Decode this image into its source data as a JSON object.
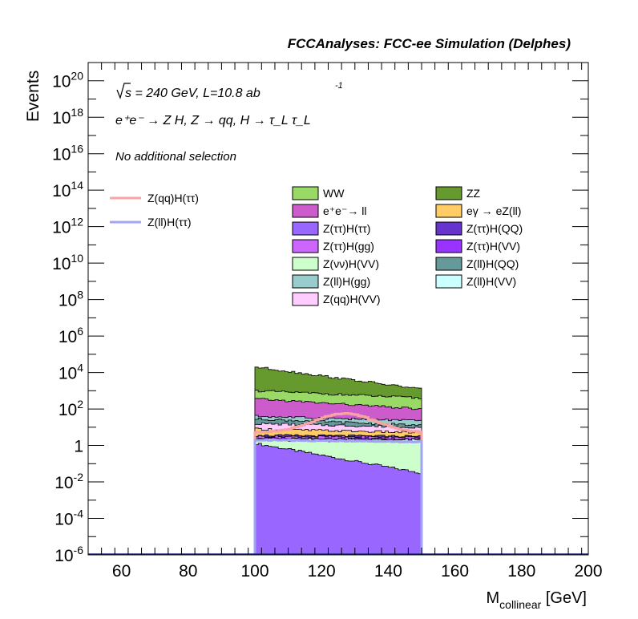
{
  "chart_data": {
    "type": "area",
    "title": "FCCAnalyses: FCC-ee Simulation (Delphes)",
    "xlabel_main": "M",
    "xlabel_sub": "collinear",
    "xlabel_unit": "[GeV]",
    "ylabel": "Events",
    "xlim": [
      50,
      200
    ],
    "ylim_log10": [
      -6,
      21
    ],
    "ylog": true,
    "grid": false,
    "xticks": [
      "60",
      "80",
      "100",
      "120",
      "140",
      "160",
      "180",
      "200"
    ],
    "xtick_values": [
      60,
      80,
      100,
      120,
      140,
      160,
      180,
      200
    ],
    "yticks": [
      {
        "exp": -6,
        "base": "10",
        "sup": "-6"
      },
      {
        "exp": -4,
        "base": "10",
        "sup": "-4"
      },
      {
        "exp": -2,
        "base": "10",
        "sup": "-2"
      },
      {
        "exp": 0,
        "base": "1",
        "sup": ""
      },
      {
        "exp": 2,
        "base": "10",
        "sup": "2"
      },
      {
        "exp": 4,
        "base": "10",
        "sup": "4"
      },
      {
        "exp": 6,
        "base": "10",
        "sup": "6"
      },
      {
        "exp": 8,
        "base": "10",
        "sup": "8"
      },
      {
        "exp": 10,
        "base": "10",
        "sup": "10"
      },
      {
        "exp": 12,
        "base": "10",
        "sup": "12"
      },
      {
        "exp": 14,
        "base": "10",
        "sup": "14"
      },
      {
        "exp": 16,
        "base": "10",
        "sup": "16"
      },
      {
        "exp": 18,
        "base": "10",
        "sup": "18"
      },
      {
        "exp": 20,
        "base": "10",
        "sup": "20"
      }
    ],
    "annotations": {
      "energy_pre": "s = 240 GeV, L=10.8 ab",
      "energy_sup": "-1",
      "process": "e⁺e⁻ → Z H, Z → qq, H → τ_L τ_L",
      "selection": "No additional selection"
    },
    "legend_left": [
      {
        "name": "Z(qq)H(ττ)",
        "color": "#f7a4a4"
      },
      {
        "name": "Z(ll)H(ττ)",
        "color": "#a3a3f7"
      }
    ],
    "legend_placement": "top-center",
    "stack_bins": {
      "x_start": 100,
      "x_end": 150,
      "bin_width": 1
    },
    "stack_order_bottom_to_top": [
      "Z(ττ)H(ττ)",
      "Z(νν)H(VV)",
      "Z(ll)H(VV)",
      "Z(ττ)H(VV)",
      "Z(ττ)H(gg)",
      "Z(ττ)H(QQ)",
      "eγ → eZ(ll)",
      "Z(qq)H(VV)",
      "Z(ll)H(QQ)",
      "Z(ll)H(gg)",
      "e⁺e⁻→ ll",
      "WW",
      "ZZ"
    ],
    "series": [
      {
        "name": "WW",
        "color": "#99d966",
        "log10_start": 3.0,
        "log10_end": 2.6
      },
      {
        "name": "ZZ",
        "color": "#66992e",
        "log10_start": 4.3,
        "log10_end": 3.1
      },
      {
        "name": "e⁺e⁻→ ll",
        "color": "#cc5ccc",
        "log10_start": 2.55,
        "log10_end": 2.0
      },
      {
        "name": "eγ → eZ(ll)",
        "color": "#ffcc66",
        "log10_start": 0.9,
        "log10_end": 0.7
      },
      {
        "name": "Z(ττ)H(ττ)",
        "color": "#9966ff",
        "log10_start": 0.1,
        "log10_end": -1.5
      },
      {
        "name": "Z(ττ)H(QQ)",
        "color": "#6633cc",
        "log10_start": 0.55,
        "log10_end": 0.5
      },
      {
        "name": "Z(ττ)H(gg)",
        "color": "#cc66ff",
        "log10_start": 0.5,
        "log10_end": 0.45
      },
      {
        "name": "Z(ττ)H(VV)",
        "color": "#9933ff",
        "log10_start": 0.4,
        "log10_end": 0.35
      },
      {
        "name": "Z(νν)H(VV)",
        "color": "#ccffcc",
        "log10_start": 0.3,
        "log10_end": 0.2
      },
      {
        "name": "Z(ll)H(QQ)",
        "color": "#669999",
        "log10_start": 1.45,
        "log10_end": 1.1
      },
      {
        "name": "Z(ll)H(gg)",
        "color": "#99cccc",
        "log10_start": 1.6,
        "log10_end": 1.35
      },
      {
        "name": "Z(ll)H(VV)",
        "color": "#ccffff",
        "log10_start": 0.35,
        "log10_end": 0.3
      },
      {
        "name": "Z(qq)H(VV)",
        "color": "#ffccff",
        "log10_start": 1.2,
        "log10_end": 1.0
      }
    ],
    "signal_lines": [
      {
        "name": "Z(qq)H(ττ)",
        "color": "#f7a4a4",
        "peak_x": 127,
        "peak_log10": 1.75,
        "edge_log10": 0.7
      },
      {
        "name": "Z(ll)H(ττ)",
        "color": "#a3a3f7",
        "log10_start": 0.3,
        "log10_end": 0.2
      }
    ]
  }
}
